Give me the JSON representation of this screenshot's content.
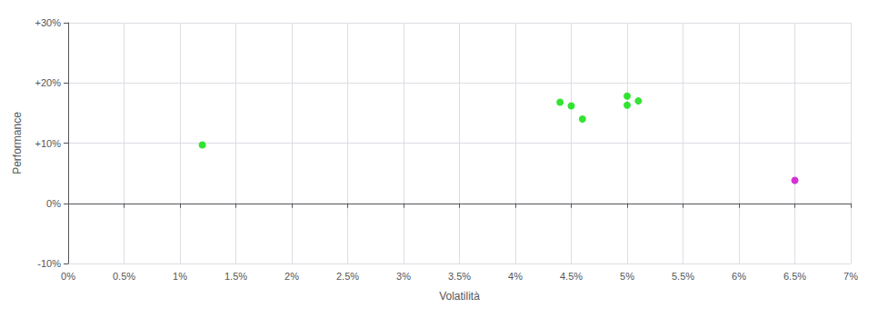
{
  "chart_data": {
    "type": "scatter",
    "xlabel": "Volatilità",
    "ylabel": "Performance",
    "xlim": [
      0.0,
      0.07
    ],
    "ylim": [
      -0.1,
      0.3
    ],
    "xticks": [
      {
        "value": 0.0,
        "label": "0%"
      },
      {
        "value": 0.005,
        "label": "0.5%"
      },
      {
        "value": 0.01,
        "label": "1%"
      },
      {
        "value": 0.015,
        "label": "1.5%"
      },
      {
        "value": 0.02,
        "label": "2%"
      },
      {
        "value": 0.025,
        "label": "2.5%"
      },
      {
        "value": 0.03,
        "label": "3%"
      },
      {
        "value": 0.035,
        "label": "3.5%"
      },
      {
        "value": 0.04,
        "label": "4%"
      },
      {
        "value": 0.045,
        "label": "4.5%"
      },
      {
        "value": 0.05,
        "label": "5%"
      },
      {
        "value": 0.055,
        "label": "5.5%"
      },
      {
        "value": 0.06,
        "label": "6%"
      },
      {
        "value": 0.065,
        "label": "6.5%"
      },
      {
        "value": 0.07,
        "label": "7%"
      }
    ],
    "yticks": [
      {
        "value": -0.1,
        "label": "-10%"
      },
      {
        "value": 0.0,
        "label": "0%"
      },
      {
        "value": 0.1,
        "label": "+10%"
      },
      {
        "value": 0.2,
        "label": "+20%"
      },
      {
        "value": 0.3,
        "label": "+30%"
      }
    ],
    "grid": true,
    "series": [
      {
        "color": "#00dd00",
        "x": [
          0.012,
          0.044,
          0.045,
          0.046,
          0.05,
          0.05,
          0.051
        ],
        "values": [
          0.097,
          0.168,
          0.162,
          0.14,
          0.178,
          0.163,
          0.17
        ]
      },
      {
        "color": "#cc00cc",
        "x": [
          0.065
        ],
        "values": [
          0.038
        ]
      }
    ]
  }
}
